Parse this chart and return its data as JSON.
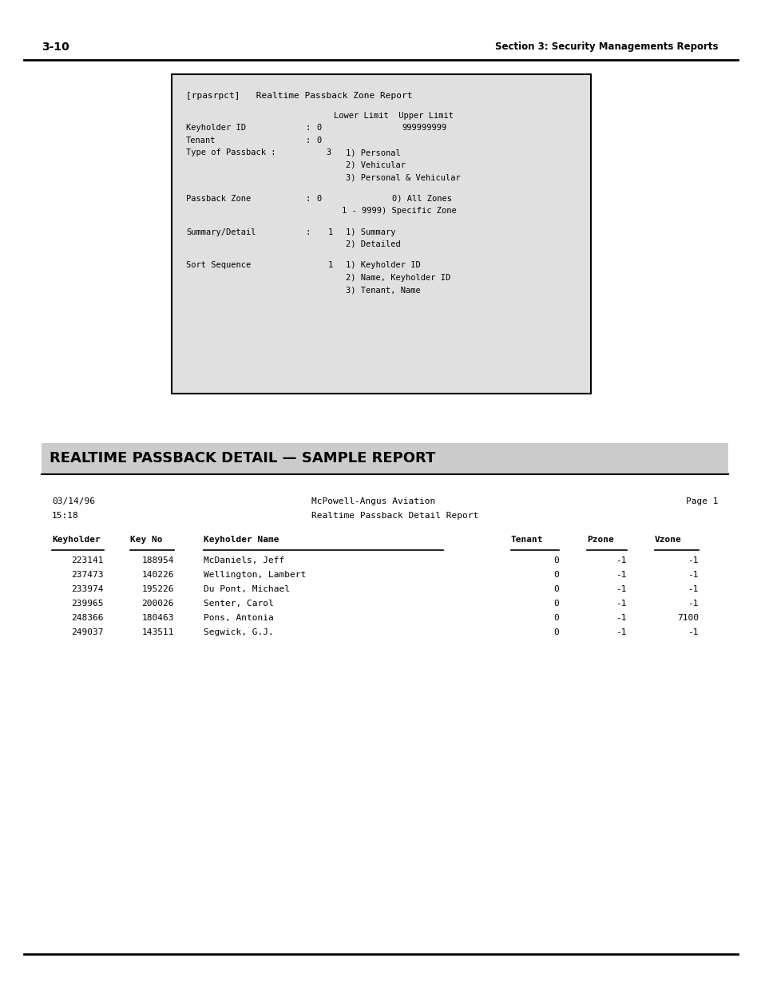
{
  "page_number": "3-10",
  "header_right": "Section 3: Security Managements Reports",
  "box_title": "[rpasrpct]   Realtime Passback Zone Report",
  "section_title": "REALTIME PASSBACK DETAIL — SAMPLE REPORT",
  "report_header_line1_left": "03/14/96",
  "report_header_line1_center": "McPowell-Angus Aviation",
  "report_header_line1_right": "Page 1",
  "report_header_line2_left": "15:18",
  "report_header_line2_center": "Realtime Passback Detail Report",
  "col_headers": [
    "Keyholder",
    "Key No",
    "Keyholder Name",
    "Tenant",
    "Pzone",
    "Vzone"
  ],
  "data_rows": [
    [
      "223141",
      "188954",
      "McDaniels, Jeff",
      "0",
      "-1",
      "-1"
    ],
    [
      "237473",
      "140226",
      "Wellington, Lambert",
      "0",
      "-1",
      "-1"
    ],
    [
      "233974",
      "195226",
      "Du Pont, Michael",
      "0",
      "-1",
      "-1"
    ],
    [
      "239965",
      "200026",
      "Senter, Carol",
      "0",
      "-1",
      "-1"
    ],
    [
      "248366",
      "180463",
      "Pons, Antonia",
      "0",
      "-1",
      "7100"
    ],
    [
      "249037",
      "143511",
      "Segwick, G.J.",
      "0",
      "-1",
      "-1"
    ]
  ],
  "bg_color": "#e0e0e0",
  "box_border_color": "#000000",
  "font_color": "#000000",
  "mono_font": "monospace",
  "section_bg": "#cccccc"
}
